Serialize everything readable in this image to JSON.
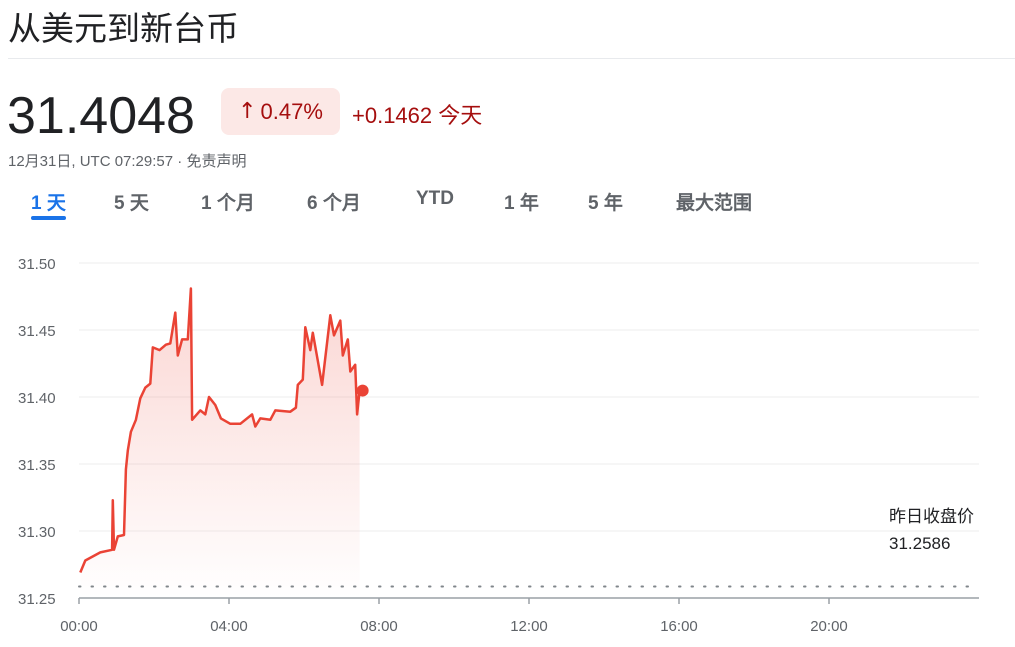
{
  "title": "从美元到新台币",
  "price": "31.4048",
  "change_percent": "0.47%",
  "change_icon": "arrow-up-icon",
  "change_abs": "+0.1462",
  "change_period": "今天",
  "timestamp": "12月31日, UTC 07:29:57",
  "disclaimer": "免责声明",
  "tabs": [
    {
      "label": "1 天",
      "active": true
    },
    {
      "label": "5 天"
    },
    {
      "label": "1 个月"
    },
    {
      "label": "6 个月"
    },
    {
      "label": "YTD"
    },
    {
      "label": "1 年"
    },
    {
      "label": "5 年"
    },
    {
      "label": "最大范围"
    }
  ],
  "colors": {
    "line": "#ea4335",
    "negative_text": "#a50e0e",
    "badge_bg": "#fce8e6",
    "accent": "#1a73e8"
  },
  "chart_data": {
    "type": "area",
    "ylim": [
      31.25,
      31.5
    ],
    "yticks": [
      "31.50",
      "31.45",
      "31.40",
      "31.35",
      "31.30",
      "31.25"
    ],
    "xlim": [
      "00:00",
      "24:00"
    ],
    "xticks": [
      "00:00",
      "04:00",
      "08:00",
      "12:00",
      "16:00",
      "20:00"
    ],
    "grid": true,
    "reference_line": {
      "label": "昨日收盘价",
      "value": 31.2586,
      "value_label": "31.2586"
    },
    "points": [
      [
        "00:02",
        31.269
      ],
      [
        "00:10",
        31.278
      ],
      [
        "00:34",
        31.284
      ],
      [
        "00:53",
        31.286
      ],
      [
        "00:54",
        31.323
      ],
      [
        "00:56",
        31.286
      ],
      [
        "01:02",
        31.296
      ],
      [
        "01:12",
        31.297
      ],
      [
        "01:15",
        31.346
      ],
      [
        "01:18",
        31.36
      ],
      [
        "01:23",
        31.374
      ],
      [
        "01:31",
        31.383
      ],
      [
        "01:38",
        31.399
      ],
      [
        "01:46",
        31.407
      ],
      [
        "01:54",
        31.41
      ],
      [
        "01:58",
        31.437
      ],
      [
        "02:09",
        31.435
      ],
      [
        "02:19",
        31.439
      ],
      [
        "02:26",
        31.44
      ],
      [
        "02:34",
        31.463
      ],
      [
        "02:38",
        31.431
      ],
      [
        "02:45",
        31.443
      ],
      [
        "02:54",
        31.443
      ],
      [
        "02:59",
        31.481
      ],
      [
        "03:01",
        31.383
      ],
      [
        "03:14",
        31.39
      ],
      [
        "03:22",
        31.387
      ],
      [
        "03:28",
        31.4
      ],
      [
        "03:38",
        31.394
      ],
      [
        "03:47",
        31.384
      ],
      [
        "04:02",
        31.38
      ],
      [
        "04:18",
        31.38
      ],
      [
        "04:37",
        31.387
      ],
      [
        "04:42",
        31.378
      ],
      [
        "04:50",
        31.384
      ],
      [
        "05:06",
        31.383
      ],
      [
        "05:14",
        31.39
      ],
      [
        "05:38",
        31.389
      ],
      [
        "05:47",
        31.392
      ],
      [
        "05:50",
        31.409
      ],
      [
        "05:58",
        31.413
      ],
      [
        "06:02",
        31.452
      ],
      [
        "06:10",
        31.435
      ],
      [
        "06:14",
        31.448
      ],
      [
        "06:21",
        31.43
      ],
      [
        "06:29",
        31.409
      ],
      [
        "06:42",
        31.461
      ],
      [
        "06:48",
        31.446
      ],
      [
        "06:58",
        31.457
      ],
      [
        "07:02",
        31.431
      ],
      [
        "07:10",
        31.443
      ],
      [
        "07:14",
        31.419
      ],
      [
        "07:22",
        31.424
      ],
      [
        "07:25",
        31.387
      ],
      [
        "07:29",
        31.4048
      ]
    ]
  }
}
